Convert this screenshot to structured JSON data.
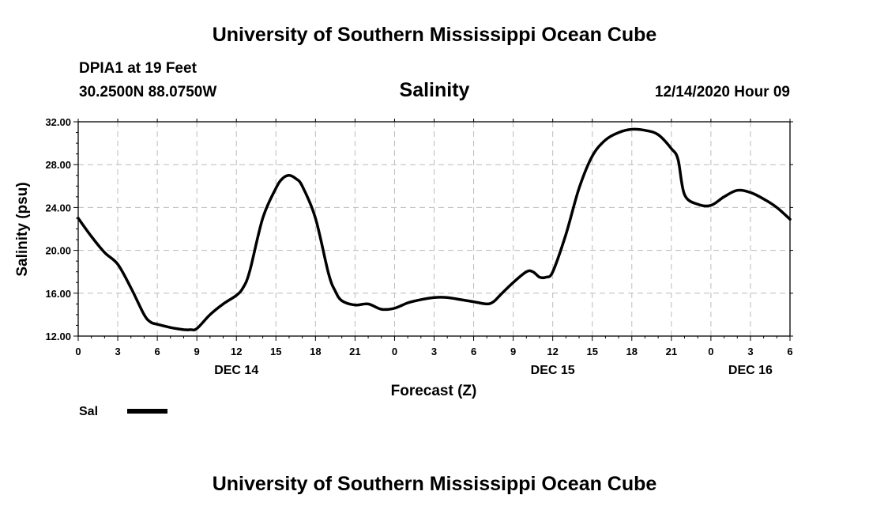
{
  "header": {
    "title": "University of Southern Mississippi Ocean Cube",
    "station": "DPIA1 at 19 Feet",
    "coords": "30.2500N 88.0750W",
    "datetime": "12/14/2020 Hour 09"
  },
  "footer": {
    "title": "University of Southern Mississippi Ocean Cube"
  },
  "chart_data": {
    "type": "line",
    "title": "Salinity",
    "xlabel": "Forecast (Z)",
    "ylabel": "Salinity (psu)",
    "ylim": [
      12,
      32
    ],
    "xlim": [
      0,
      54
    ],
    "yticks": [
      "12.00",
      "16.00",
      "20.00",
      "24.00",
      "28.00",
      "32.00"
    ],
    "xtick_labels": [
      "0",
      "3",
      "6",
      "9",
      "12",
      "15",
      "18",
      "21",
      "0",
      "3",
      "6",
      "9",
      "12",
      "15",
      "18",
      "21",
      "0",
      "3",
      "6"
    ],
    "date_labels": [
      {
        "label": "DEC 14",
        "hour": 12
      },
      {
        "label": "DEC 15",
        "hour": 36
      },
      {
        "label": "DEC 16",
        "hour": 51
      }
    ],
    "grid": true,
    "legend": {
      "position": "bottom-left",
      "entries": [
        "Sal"
      ]
    },
    "series": [
      {
        "name": "Sal",
        "color": "#000000",
        "x": [
          0,
          1,
          2,
          3,
          4,
          5,
          5.5,
          6,
          7,
          8,
          8.5,
          9,
          10,
          11,
          12,
          12.5,
          13,
          14,
          15,
          15.5,
          16,
          16.5,
          17,
          18,
          19,
          19.5,
          20,
          21,
          22,
          23,
          24,
          25,
          26,
          27,
          28,
          29,
          30,
          31,
          31.5,
          32,
          33,
          34,
          34.5,
          35,
          35.5,
          36,
          37,
          38,
          39,
          40,
          41,
          42,
          43,
          44,
          45,
          45.5,
          46,
          47,
          48,
          49,
          50,
          51,
          52,
          53,
          54
        ],
        "values": [
          23.0,
          21.3,
          19.8,
          18.7,
          16.5,
          14.0,
          13.3,
          13.1,
          12.8,
          12.6,
          12.6,
          12.7,
          14.0,
          15.0,
          15.8,
          16.5,
          18.0,
          23.0,
          25.8,
          26.7,
          27.0,
          26.7,
          26.0,
          23.0,
          17.8,
          16.2,
          15.3,
          14.9,
          15.0,
          14.5,
          14.6,
          15.1,
          15.4,
          15.6,
          15.6,
          15.4,
          15.2,
          15.0,
          15.2,
          15.8,
          17.0,
          18.0,
          18.0,
          17.5,
          17.5,
          18.0,
          21.5,
          25.8,
          28.8,
          30.3,
          31.0,
          31.3,
          31.2,
          30.8,
          29.5,
          28.5,
          25.2,
          24.3,
          24.2,
          25.0,
          25.6,
          25.4,
          24.8,
          24.0,
          22.9
        ]
      }
    ]
  }
}
